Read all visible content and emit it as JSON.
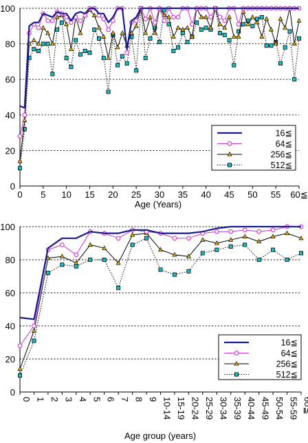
{
  "chart_data": [
    {
      "type": "line",
      "xlabel": "Age (Years)",
      "ylabel": "",
      "ylim": [
        0,
        100
      ],
      "yticks": [
        0,
        20,
        40,
        60,
        80,
        100
      ],
      "xlim": [
        0,
        60
      ],
      "xticks": [
        "0",
        "5",
        "10",
        "15",
        "20",
        "25",
        "30",
        "35",
        "40",
        "45",
        "50",
        "55",
        "60≦"
      ],
      "grid": true,
      "legend_position": "lower-right",
      "x": [
        0,
        1,
        2,
        3,
        4,
        5,
        6,
        7,
        8,
        9,
        10,
        11,
        12,
        13,
        14,
        15,
        16,
        17,
        18,
        19,
        20,
        21,
        22,
        23,
        24,
        25,
        26,
        27,
        28,
        29,
        30,
        31,
        32,
        33,
        34,
        35,
        36,
        37,
        38,
        39,
        40,
        41,
        42,
        43,
        44,
        45,
        46,
        47,
        48,
        49,
        50,
        51,
        52,
        53,
        54,
        55,
        56,
        57,
        58,
        59,
        60
      ],
      "series": [
        {
          "name": "16≦",
          "color": "#1a1a8c",
          "marker": "none",
          "dash": "solid",
          "values": [
            45,
            44,
            90,
            92,
            92,
            97,
            96,
            95,
            98,
            97,
            97,
            93,
            97,
            98,
            97,
            100,
            100,
            97,
            97,
            92,
            95,
            100,
            100,
            77,
            93,
            95,
            100,
            100,
            100,
            100,
            100,
            100,
            100,
            100,
            100,
            100,
            100,
            100,
            100,
            100,
            100,
            100,
            100,
            100,
            100,
            100,
            100,
            100,
            100,
            100,
            100,
            100,
            100,
            100,
            100,
            100,
            100,
            100,
            100,
            100,
            100
          ]
        },
        {
          "name": "64≦",
          "color": "#cc33cc",
          "marker": "circle",
          "dash": "solid",
          "values": [
            28,
            40,
            86,
            91,
            89,
            97,
            93,
            93,
            98,
            97,
            95,
            92,
            95,
            93,
            96,
            100,
            100,
            96,
            94,
            88,
            93,
            100,
            100,
            75,
            92,
            93,
            100,
            94,
            100,
            92,
            100,
            93,
            100,
            95,
            95,
            100,
            100,
            91,
            100,
            100,
            100,
            95,
            100,
            95,
            93,
            100,
            100,
            91,
            100,
            100,
            100,
            100,
            100,
            100,
            100,
            100,
            100,
            100,
            100,
            100,
            100
          ]
        },
        {
          "name": "256≦",
          "color": "#000000",
          "marker": "triangle",
          "dash": "solid",
          "values": [
            14,
            37,
            80,
            82,
            80,
            89,
            86,
            80,
            95,
            96,
            91,
            77,
            95,
            86,
            96,
            99,
            96,
            89,
            84,
            72,
            86,
            78,
            86,
            79,
            86,
            90,
            100,
            86,
            95,
            86,
            100,
            96,
            95,
            84,
            89,
            88,
            89,
            84,
            100,
            95,
            95,
            89,
            100,
            91,
            89,
            95,
            84,
            84,
            98,
            91,
            95,
            92,
            84,
            94,
            88,
            80,
            94,
            89,
            100,
            80,
            93
          ]
        },
        {
          "name": "512≦",
          "color": "#000000",
          "marker": "square",
          "dash": "dotted",
          "values": [
            10,
            32,
            72,
            77,
            76,
            80,
            80,
            63,
            88,
            92,
            72,
            67,
            82,
            74,
            76,
            75,
            88,
            83,
            72,
            53,
            85,
            68,
            73,
            69,
            84,
            65,
            100,
            72,
            83,
            89,
            81,
            99,
            91,
            76,
            78,
            86,
            81,
            84,
            92,
            88,
            89,
            88,
            100,
            86,
            85,
            82,
            68,
            87,
            91,
            93,
            90,
            94,
            95,
            79,
            79,
            81,
            69,
            78,
            87,
            60,
            83
          ]
        }
      ]
    },
    {
      "type": "line",
      "xlabel": "Age group (years)",
      "ylabel": "",
      "ylim": [
        0,
        100
      ],
      "yticks": [
        0,
        20,
        40,
        60,
        80,
        100
      ],
      "grid": true,
      "legend_position": "lower-right",
      "categories": [
        "0",
        "1",
        "2",
        "3",
        "4",
        "5",
        "6",
        "7",
        "8",
        "9",
        "10-14",
        "15-19",
        "20-24",
        "25-29",
        "30-34",
        "35-39",
        "40-44",
        "45-49",
        "50-54",
        "55-59",
        "60≦"
      ],
      "series": [
        {
          "name": "16≦",
          "color": "#1a1a8c",
          "marker": "none",
          "dash": "solid",
          "values": [
            45,
            44,
            87,
            93,
            93,
            97,
            96,
            96,
            98,
            98,
            96,
            96,
            96,
            97,
            99,
            100,
            100,
            100,
            100,
            100,
            100
          ]
        },
        {
          "name": "64≦",
          "color": "#cc33cc",
          "marker": "circle",
          "dash": "solid",
          "values": [
            28,
            40,
            86,
            89,
            83,
            97,
            96,
            93,
            98,
            97,
            96,
            93,
            93,
            96,
            97,
            97,
            98,
            97,
            98,
            100,
            100
          ]
        },
        {
          "name": "256≦",
          "color": "#000000",
          "marker": "triangle",
          "dash": "solid",
          "values": [
            14,
            37,
            81,
            82,
            78,
            89,
            87,
            78,
            95,
            96,
            86,
            83,
            82,
            92,
            90,
            92,
            94,
            91,
            94,
            96,
            93
          ]
        },
        {
          "name": "512≦",
          "color": "#000000",
          "marker": "square",
          "dash": "dotted",
          "values": [
            10,
            31,
            72,
            77,
            76,
            80,
            80,
            63,
            89,
            93,
            74,
            71,
            73,
            84,
            86,
            88,
            89,
            80,
            86,
            80,
            84
          ]
        }
      ]
    }
  ]
}
